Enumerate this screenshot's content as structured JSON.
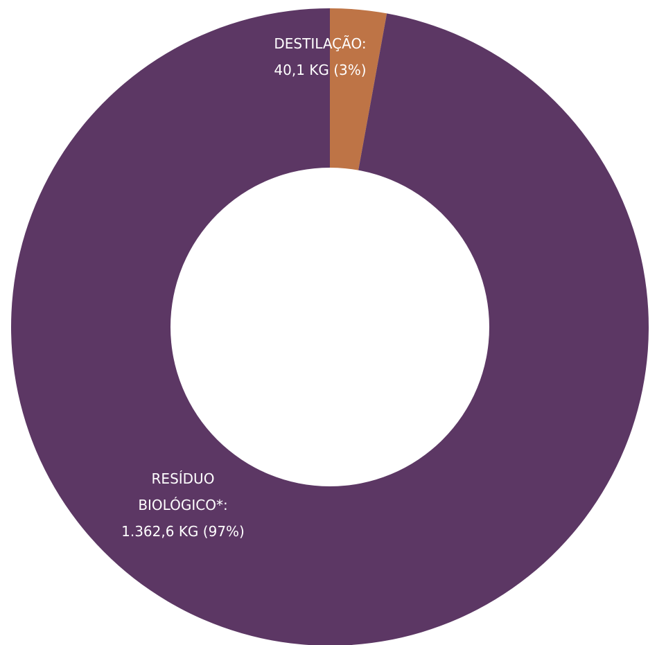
{
  "chart_data": {
    "type": "pie",
    "variant": "donut",
    "slices": [
      {
        "label_lines": [
          "DESTILAÇÃO:",
          "40,1 KG (3%)"
        ],
        "value": 40.1,
        "unit": "KG",
        "percent": 3,
        "color": "#BE7446"
      },
      {
        "label_lines": [
          "RESÍDUO",
          "BIOLÓGICO*:",
          "1.362,6 KG (97%)"
        ],
        "value": 1362.6,
        "unit": "KG",
        "percent": 97,
        "color": "#5C3764"
      }
    ]
  }
}
